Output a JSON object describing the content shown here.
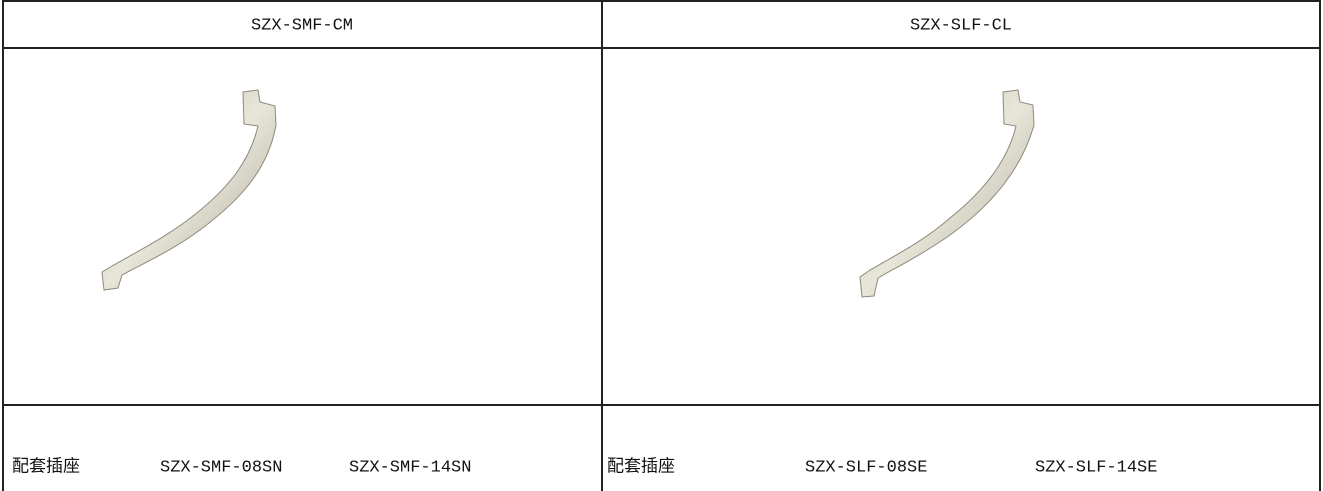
{
  "table": {
    "header": [
      "SZX-SMF-CM",
      "SZX-SLF-CL"
    ],
    "footer": [
      {
        "label": "配套插座",
        "items": [
          "SZX-SMF-08SN",
          "SZX-SMF-14SN"
        ]
      },
      {
        "label": "配套插座",
        "items": [
          "SZX-SLF-08SE",
          "SZX-SLF-14SE"
        ]
      }
    ]
  }
}
